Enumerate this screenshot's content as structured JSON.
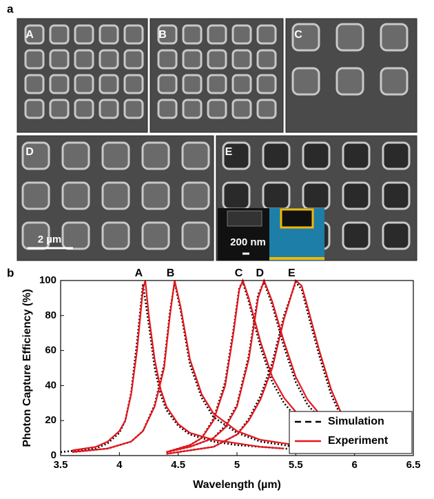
{
  "panel_a": {
    "label": "a",
    "images": [
      "A",
      "B",
      "C",
      "D",
      "E"
    ],
    "scale_bars": [
      "2 µm",
      "200 nm"
    ]
  },
  "chart_data": {
    "type": "line",
    "label": "b",
    "x_label": "Wavelength (µm)",
    "y_label": "Photon Capture Efficiency (%)",
    "xlim": [
      3.5,
      6.5
    ],
    "xticks": [
      3.5,
      4,
      4.5,
      5,
      5.5,
      6,
      6.5
    ],
    "ylim": [
      0,
      100
    ],
    "yticks": [
      0,
      20,
      40,
      60,
      80,
      100
    ],
    "legend": "lower right",
    "series": [
      {
        "name": "Simulation",
        "color": "#000000",
        "dash": "dotted",
        "curves": [
          {
            "x": [
              3.5,
              3.8,
              3.9,
              4.0,
              4.05,
              4.1,
              4.15,
              4.2,
              4.25,
              4.3,
              4.35,
              4.4,
              4.5,
              4.6,
              4.8,
              5.0,
              5.2,
              5.4,
              5.6
            ],
            "values": [
              2,
              4,
              7,
              13,
              20,
              36,
              65,
              98,
              75,
              50,
              35,
              26,
              17,
              12,
              8,
              6,
              5,
              4,
              3
            ]
          },
          {
            "x": [
              3.6,
              3.9,
              4.1,
              4.2,
              4.3,
              4.38,
              4.43,
              4.47,
              4.52,
              4.6,
              4.7,
              4.8,
              5.0,
              5.2,
              5.4,
              5.6
            ],
            "values": [
              2,
              4,
              8,
              14,
              29,
              52,
              82,
              99,
              83,
              52,
              33,
              22,
              13,
              8,
              6,
              4
            ]
          },
          {
            "x": [
              4.4,
              4.6,
              4.7,
              4.8,
              4.9,
              4.97,
              5.02,
              5.05,
              5.1,
              5.2,
              5.3,
              5.4,
              5.5,
              5.6
            ],
            "values": [
              2,
              6,
              10,
              21,
              42,
              72,
              96,
              99,
              88,
              62,
              42,
              30,
              22,
              16
            ]
          },
          {
            "x": [
              4.4,
              4.6,
              4.8,
              4.9,
              5.0,
              5.1,
              5.18,
              5.23,
              5.3,
              5.4,
              5.5,
              5.6,
              5.75,
              5.9
            ],
            "values": [
              2,
              5,
              10,
              17,
              29,
              57,
              92,
              99,
              86,
              62,
              42,
              29,
              18,
              11
            ]
          },
          {
            "x": [
              4.4,
              4.8,
              5.0,
              5.1,
              5.2,
              5.3,
              5.4,
              5.5,
              5.55,
              5.6,
              5.7,
              5.8,
              5.9,
              5.97
            ],
            "values": [
              1,
              5,
              12,
              21,
              34,
              53,
              80,
              99,
              95,
              82,
              57,
              35,
              20,
              14
            ]
          }
        ]
      },
      {
        "name": "Experiment",
        "color": "#e8141b",
        "dash": "solid",
        "curves": [
          {
            "x": [
              3.6,
              3.8,
              3.9,
              4.0,
              4.05,
              4.1,
              4.15,
              4.2,
              4.22,
              4.25,
              4.3,
              4.35,
              4.4,
              4.5,
              4.6,
              4.8,
              5.0,
              5.2,
              5.4
            ],
            "values": [
              3,
              5,
              8,
              14,
              20,
              35,
              60,
              95,
              100,
              80,
              55,
              38,
              28,
              18,
              13,
              9,
              7,
              5,
              4
            ]
          },
          {
            "x": [
              3.6,
              3.9,
              4.1,
              4.2,
              4.3,
              4.38,
              4.43,
              4.47,
              4.52,
              4.6,
              4.7,
              4.8,
              5.0,
              5.2,
              5.4,
              5.6
            ],
            "values": [
              2,
              4,
              8,
              14,
              28,
              50,
              80,
              100,
              85,
              55,
              35,
              24,
              14,
              9,
              7,
              5
            ]
          },
          {
            "x": [
              4.4,
              4.6,
              4.7,
              4.8,
              4.9,
              4.97,
              5.02,
              5.05,
              5.1,
              5.2,
              5.3,
              5.4,
              5.5,
              5.6,
              5.8
            ],
            "values": [
              2,
              6,
              10,
              20,
              40,
              70,
              95,
              100,
              90,
              65,
              45,
              33,
              25,
              18,
              12
            ]
          },
          {
            "x": [
              4.4,
              4.6,
              4.8,
              4.9,
              5.0,
              5.1,
              5.18,
              5.23,
              5.3,
              5.4,
              5.5,
              5.6,
              5.75,
              5.9
            ],
            "values": [
              2,
              5,
              10,
              16,
              28,
              55,
              90,
              100,
              88,
              65,
              45,
              32,
              20,
              12
            ]
          },
          {
            "x": [
              4.4,
              4.8,
              5.0,
              5.1,
              5.2,
              5.3,
              5.4,
              5.5,
              5.55,
              5.6,
              5.7,
              5.8,
              5.9,
              5.95
            ],
            "values": [
              1,
              5,
              12,
              20,
              32,
              50,
              78,
              100,
              97,
              85,
              60,
              38,
              22,
              16
            ]
          }
        ]
      }
    ],
    "peak_labels": [
      {
        "label": "A",
        "x": 4.2
      },
      {
        "label": "B",
        "x": 4.47
      },
      {
        "label": "C",
        "x": 5.05
      },
      {
        "label": "D",
        "x": 5.23
      },
      {
        "label": "E",
        "x": 5.5
      }
    ]
  }
}
